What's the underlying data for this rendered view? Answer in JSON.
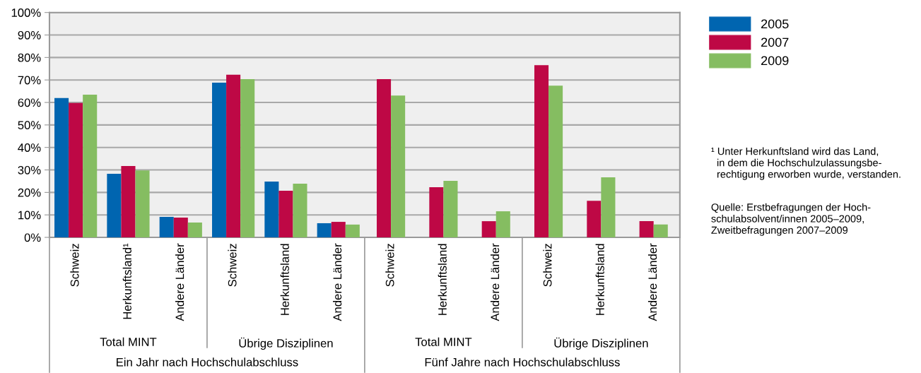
{
  "chart_data": {
    "type": "bar",
    "categories": [
      "Schweiz",
      "Herkunftsland¹",
      "Andere Länder",
      "Schweiz",
      "Herkunftsland",
      "Andere Länder",
      "Schweiz",
      "Herkunftsland",
      "Andere Länder",
      "Schweiz",
      "Herkunftsland",
      "Andere Länder"
    ],
    "series": [
      {
        "name": "2005",
        "color": "#0065b0",
        "values": [
          62,
          28.3,
          9.1,
          68.8,
          24.8,
          6.3,
          null,
          null,
          null,
          null,
          null,
          null
        ]
      },
      {
        "name": "2007",
        "color": "#be0845",
        "values": [
          59.8,
          31.7,
          8.8,
          72.3,
          20.7,
          6.9,
          70.4,
          22.3,
          7.2,
          76.6,
          16.3,
          7.2
        ]
      },
      {
        "name": "2009",
        "color": "#85bd61",
        "values": [
          63.5,
          29.8,
          6.6,
          70.4,
          23.9,
          5.7,
          63.1,
          25.1,
          11.6,
          67.5,
          26.7,
          5.7
        ]
      }
    ],
    "ylim": [
      0,
      100
    ],
    "yticks": [
      {
        "value": 0,
        "label": "0%"
      },
      {
        "value": 10,
        "label": "10%"
      },
      {
        "value": 20,
        "label": "20%"
      },
      {
        "value": 30,
        "label": "30%"
      },
      {
        "value": 40,
        "label": "40%"
      },
      {
        "value": 50,
        "label": "50%"
      },
      {
        "value": 60,
        "label": "60%"
      },
      {
        "value": 70,
        "label": "70%"
      },
      {
        "value": 80,
        "label": "80%"
      },
      {
        "value": 90,
        "label": "90%"
      },
      {
        "value": 100,
        "label": "100%"
      }
    ],
    "grid": "y",
    "legend": "top right",
    "annotations": [
      "Total MINT",
      "Übrige Disziplinen",
      "Total MINT",
      "Übrige Disziplinen",
      "Ein Jahr nach Hochschulabschluss",
      "Fünf Jahre nach Hochschulabschluss",
      "¹ Unter Herkunftsland wird das Land,\n  in dem die Hochschulzulassungsbe-\n  rechtigung erworben wurde, verstanden.",
      "Quelle: Erstbefragungen der Hoch-\nschulabsolvent/innen 2005–2009,\nZweitbefragungen 2007–2009"
    ]
  }
}
